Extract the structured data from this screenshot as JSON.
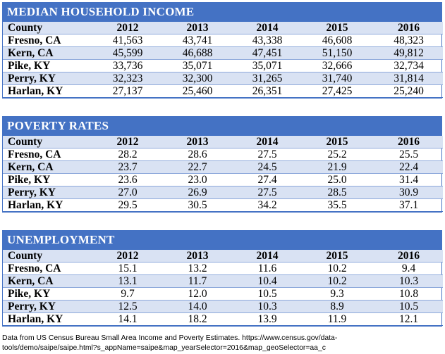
{
  "tables": [
    {
      "title": "MEDIAN HOUSEHOLD INCOME",
      "columns": [
        "County",
        "2012",
        "2013",
        "2014",
        "2015",
        "2016"
      ],
      "rows": [
        {
          "county": "Fresno, CA",
          "values": [
            "41,563",
            "43,741",
            "43,338",
            "46,608",
            "48,323"
          ]
        },
        {
          "county": "Kern, CA",
          "values": [
            "45,599",
            "46,688",
            "47,451",
            "51,150",
            "49,812"
          ]
        },
        {
          "county": "Pike, KY",
          "values": [
            "33,736",
            "35,071",
            "35,071",
            "32,666",
            "32,734"
          ]
        },
        {
          "county": "Perry, KY",
          "values": [
            "32,323",
            "32,300",
            "31,265",
            "31,740",
            "31,814"
          ]
        },
        {
          "county": "Harlan, KY",
          "values": [
            "27,137",
            "25,460",
            "26,351",
            "27,425",
            "25,240"
          ]
        }
      ]
    },
    {
      "title": "POVERTY RATES",
      "columns": [
        "County",
        "2012",
        "2013",
        "2014",
        "2015",
        "2016"
      ],
      "rows": [
        {
          "county": "Fresno, CA",
          "values": [
            "28.2",
            "28.6",
            "27.5",
            "25.2",
            "25.5"
          ]
        },
        {
          "county": "Kern, CA",
          "values": [
            "23.7",
            "22.7",
            "24.5",
            "21.9",
            "22.4"
          ]
        },
        {
          "county": "Pike, KY",
          "values": [
            "23.6",
            "23.0",
            "27.4",
            "25.0",
            "31.4"
          ]
        },
        {
          "county": "Perry, KY",
          "values": [
            "27.0",
            "26.9",
            "27.5",
            "28.5",
            "30.9"
          ]
        },
        {
          "county": "Harlan, KY",
          "values": [
            "29.5",
            "30.5",
            "34.2",
            "35.5",
            "37.1"
          ]
        }
      ]
    },
    {
      "title": "UNEMPLOYMENT",
      "columns": [
        "County",
        "2012",
        "2013",
        "2014",
        "2015",
        "2016"
      ],
      "rows": [
        {
          "county": "Fresno, CA",
          "values": [
            "15.1",
            "13.2",
            "11.6",
            "10.2",
            "9.4"
          ]
        },
        {
          "county": "Kern, CA",
          "values": [
            "13.1",
            "11.7",
            "10.4",
            "10.2",
            "10.3"
          ]
        },
        {
          "county": "Pike, KY",
          "values": [
            "9.7",
            "12.0",
            "10.5",
            "9.3",
            "10.8"
          ]
        },
        {
          "county": "Perry, KY",
          "values": [
            "12.5",
            "14.0",
            "10.3",
            "8.9",
            "10.5"
          ]
        },
        {
          "county": "Harlan, KY",
          "values": [
            "14.1",
            "18.2",
            "13.9",
            "11.9",
            "12.1"
          ]
        }
      ]
    }
  ],
  "source": {
    "line1": "Data from US Census Bureau Small Area Income and Poverty Estimates. https://www.census.gov/data-",
    "line2": "tools/demo/saipe/saipe.html?s_appName=saipe&map_yearSelector=2016&map_geoSelector=aa_c"
  },
  "colors": {
    "header": "#4472c4",
    "band": "#d9e2f3"
  }
}
